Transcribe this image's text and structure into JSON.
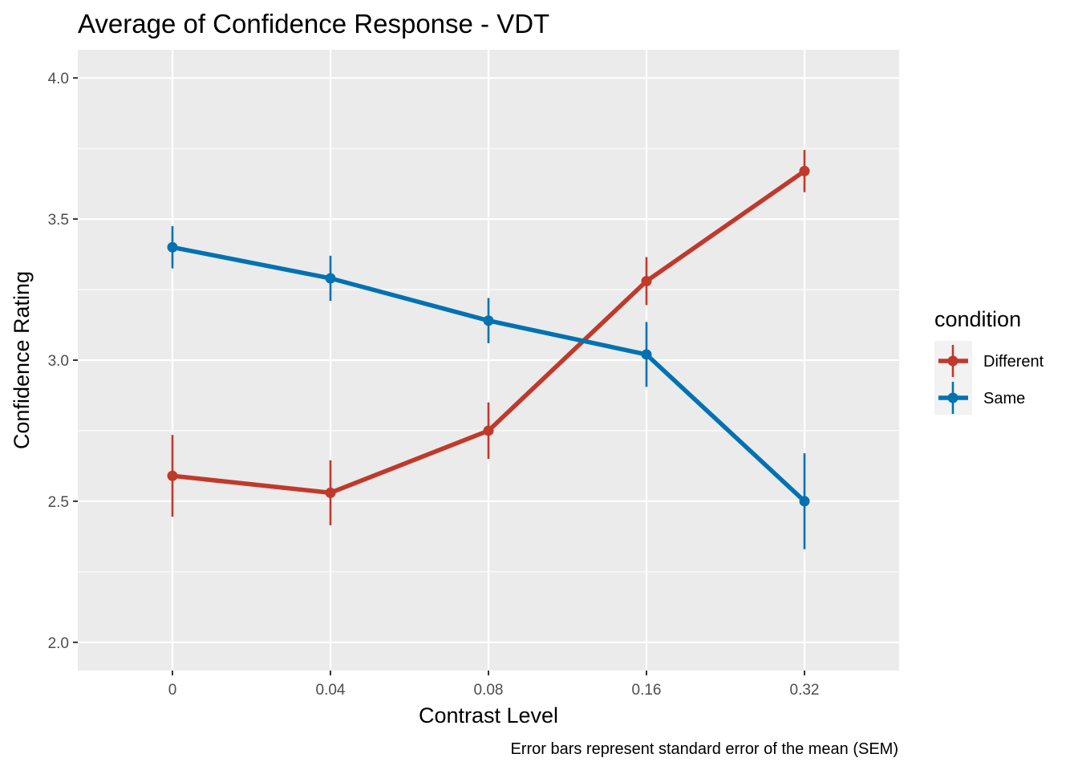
{
  "chart_data": {
    "type": "line",
    "title": "Average of Confidence Response - VDT",
    "xlabel": "Contrast Level",
    "ylabel": "Confidence Rating",
    "caption": "Error bars represent standard error of the mean (SEM)",
    "categories": [
      "0",
      "0.04",
      "0.08",
      "0.16",
      "0.32"
    ],
    "y_ticks": [
      "2.0",
      "2.5",
      "3.0",
      "3.5",
      "4.0"
    ],
    "ylim": [
      1.9,
      4.1
    ],
    "grid": true,
    "legend": {
      "title": "condition",
      "position": "right"
    },
    "series": [
      {
        "name": "Different",
        "color": "#C0392B",
        "values": [
          2.59,
          2.53,
          2.75,
          3.28,
          3.67
        ],
        "sem": [
          0.145,
          0.115,
          0.1,
          0.085,
          0.075
        ]
      },
      {
        "name": "Same",
        "color": "#0072B2",
        "values": [
          3.4,
          3.29,
          3.14,
          3.02,
          2.5
        ],
        "sem": [
          0.075,
          0.08,
          0.08,
          0.115,
          0.17
        ]
      }
    ]
  }
}
